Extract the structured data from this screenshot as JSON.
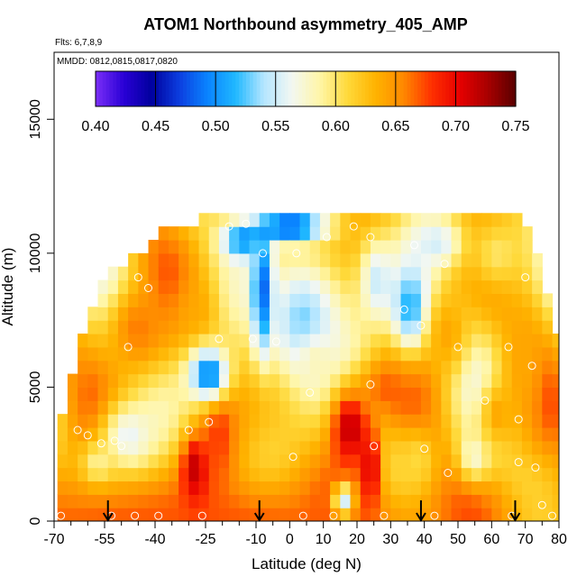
{
  "chart_data": {
    "type": "heatmap",
    "title": "ATOM1 Northbound asymmetry_405_AMP",
    "flights_note": "Flts: 6,7,8,9",
    "dates_note": "MMDD: 0812,0815,0817,0820",
    "xlabel": "Latitude (deg N)",
    "ylabel": "Altitude (m)",
    "xlim": [
      -70,
      80
    ],
    "ylim": [
      0,
      17500
    ],
    "x_ticks": [
      -70,
      -55,
      -40,
      -25,
      -10,
      0,
      10,
      20,
      30,
      40,
      50,
      60,
      70,
      80
    ],
    "x_tick_labels": [
      "-70",
      "-55",
      "-40",
      "-25",
      "-10",
      "0",
      "10",
      "20",
      "30",
      "40",
      "50",
      "60",
      "70",
      "80"
    ],
    "x_minor_ticks": [
      -65,
      -60,
      -50,
      -45,
      -35,
      -30,
      -20,
      -15,
      -5,
      5,
      15,
      25,
      35,
      45,
      55,
      65,
      75
    ],
    "y_ticks": [
      0,
      5000,
      10000,
      15000
    ],
    "y_tick_labels": [
      "0",
      "5000",
      "10000",
      "15000"
    ],
    "colorbar": {
      "min": 0.4,
      "max": 0.75,
      "ticks": [
        0.4,
        0.45,
        0.5,
        0.55,
        0.6,
        0.65,
        0.7,
        0.75
      ],
      "tick_labels": [
        "0.40",
        "0.45",
        "0.50",
        "0.55",
        "0.60",
        "0.65",
        "0.70",
        "0.75"
      ],
      "colors": [
        "#7b2ff7",
        "#2a00d6",
        "#00009e",
        "#0c3fe0",
        "#0a84ff",
        "#20b8ff",
        "#b4e6ff",
        "#f2f7f2",
        "#fff6a8",
        "#ffd93a",
        "#ffb300",
        "#ff8800",
        "#ff3000",
        "#e60000",
        "#a80000",
        "#5a0000"
      ]
    },
    "arrows_latitude": [
      -54,
      -9,
      39,
      67
    ],
    "grid": {
      "lat_start": -69,
      "lat_step": 3,
      "alt_start": 0,
      "alt_step": 500
    },
    "envelope": [
      [
        -69,
        3500
      ],
      [
        -66,
        4500
      ],
      [
        -63,
        5800
      ],
      [
        -60,
        7300
      ],
      [
        -57,
        8400
      ],
      [
        -54,
        9000
      ],
      [
        -51,
        9400
      ],
      [
        -48,
        9400
      ],
      [
        -45,
        9900
      ],
      [
        -42,
        9900
      ],
      [
        -39,
        10400
      ],
      [
        -36,
        10700
      ],
      [
        -33,
        10900
      ],
      [
        -30,
        10900
      ],
      [
        -27,
        11000
      ],
      [
        -24,
        11400
      ],
      [
        -21,
        11400
      ],
      [
        -18,
        11400
      ],
      [
        -15,
        11400
      ],
      [
        -12,
        11400
      ],
      [
        -9,
        11400
      ],
      [
        -6,
        11400
      ],
      [
        -3,
        11400
      ],
      [
        0,
        11400
      ],
      [
        3,
        11400
      ],
      [
        6,
        11400
      ],
      [
        9,
        11400
      ],
      [
        12,
        11400
      ],
      [
        15,
        11400
      ],
      [
        18,
        11400
      ],
      [
        21,
        11400
      ],
      [
        24,
        11400
      ],
      [
        27,
        11400
      ],
      [
        30,
        11400
      ],
      [
        33,
        11400
      ],
      [
        36,
        11400
      ],
      [
        39,
        11400
      ],
      [
        42,
        11400
      ],
      [
        45,
        11400
      ],
      [
        48,
        11400
      ],
      [
        51,
        11400
      ],
      [
        54,
        11400
      ],
      [
        57,
        11400
      ],
      [
        60,
        11400
      ],
      [
        63,
        11400
      ],
      [
        66,
        11400
      ],
      [
        69,
        11400
      ],
      [
        72,
        10600
      ],
      [
        75,
        9000
      ],
      [
        78,
        7200
      ],
      [
        80,
        6800
      ]
    ],
    "features": [
      {
        "lat": -33,
        "alt": 0,
        "dlat": 120,
        "dalt": 2000,
        "val": 0.67
      },
      {
        "lat": -28,
        "alt": 2000,
        "dlat": 4,
        "dalt": 1200,
        "val": 0.72
      },
      {
        "lat": -21,
        "alt": 3500,
        "dlat": 5,
        "dalt": 2200,
        "val": 0.68
      },
      {
        "lat": -48,
        "alt": 3200,
        "dlat": 8,
        "dalt": 1300,
        "val": 0.56
      },
      {
        "lat": -57,
        "alt": 2200,
        "dlat": 5,
        "dalt": 800,
        "val": 0.59
      },
      {
        "lat": -45,
        "alt": 7200,
        "dlat": 9,
        "dalt": 1600,
        "val": 0.66
      },
      {
        "lat": -28,
        "alt": 7800,
        "dlat": 6,
        "dalt": 1300,
        "val": 0.64
      },
      {
        "lat": -24,
        "alt": 5500,
        "dlat": 6,
        "dalt": 1000,
        "val": 0.49
      },
      {
        "lat": -8,
        "alt": 8500,
        "dlat": 3,
        "dalt": 2200,
        "val": 0.46
      },
      {
        "lat": -14,
        "alt": 10500,
        "dlat": 6,
        "dalt": 700,
        "val": 0.5
      },
      {
        "lat": 0,
        "alt": 11000,
        "dlat": 10,
        "dalt": 500,
        "val": 0.45
      },
      {
        "lat": 4,
        "alt": 7500,
        "dlat": 12,
        "dalt": 2500,
        "val": 0.53
      },
      {
        "lat": 8,
        "alt": 6000,
        "dlat": 6,
        "dalt": 900,
        "val": 0.58
      },
      {
        "lat": 18,
        "alt": 3500,
        "dlat": 6,
        "dalt": 1500,
        "val": 0.72
      },
      {
        "lat": 24,
        "alt": 2000,
        "dlat": 3,
        "dalt": 1500,
        "val": 0.71
      },
      {
        "lat": 16,
        "alt": 800,
        "dlat": 3,
        "dalt": 600,
        "val": 0.55
      },
      {
        "lat": 30,
        "alt": 5000,
        "dlat": 9,
        "dalt": 1000,
        "val": 0.67
      },
      {
        "lat": 26,
        "alt": 9000,
        "dlat": 5,
        "dalt": 1500,
        "val": 0.55
      },
      {
        "lat": 36,
        "alt": 8000,
        "dlat": 6,
        "dalt": 1700,
        "val": 0.51
      },
      {
        "lat": 47,
        "alt": 7000,
        "dlat": 6,
        "dalt": 1500,
        "val": 0.64
      },
      {
        "lat": 38,
        "alt": 2300,
        "dlat": 5,
        "dalt": 1000,
        "val": 0.61
      },
      {
        "lat": 55,
        "alt": 2500,
        "dlat": 5,
        "dalt": 1000,
        "val": 0.57
      },
      {
        "lat": 62,
        "alt": 4000,
        "dlat": 6,
        "dalt": 1300,
        "val": 0.64
      },
      {
        "lat": 44,
        "alt": 10400,
        "dlat": 8,
        "dalt": 900,
        "val": 0.55
      },
      {
        "lat": 62,
        "alt": 10000,
        "dlat": 10,
        "dalt": 1500,
        "val": 0.6
      },
      {
        "lat": 70,
        "alt": 6000,
        "dlat": 6,
        "dalt": 2500,
        "val": 0.64
      }
    ],
    "points": [
      [
        -68,
        200
      ],
      [
        -63,
        3400
      ],
      [
        -60,
        3200
      ],
      [
        -56,
        2900
      ],
      [
        -53,
        200
      ],
      [
        -52,
        3000
      ],
      [
        -50,
        2800
      ],
      [
        -48,
        6500
      ],
      [
        -46,
        200
      ],
      [
        -45,
        9100
      ],
      [
        -42,
        8700
      ],
      [
        -39,
        200
      ],
      [
        -30,
        3400
      ],
      [
        -26,
        200
      ],
      [
        -24,
        3700
      ],
      [
        -21,
        6800
      ],
      [
        -18,
        11000
      ],
      [
        -13,
        11100
      ],
      [
        -11,
        6800
      ],
      [
        -8,
        10000
      ],
      [
        -4,
        6700
      ],
      [
        1,
        2400
      ],
      [
        2,
        10000
      ],
      [
        4,
        200
      ],
      [
        6,
        4800
      ],
      [
        11,
        10600
      ],
      [
        13,
        200
      ],
      [
        19,
        11000
      ],
      [
        24,
        10600
      ],
      [
        24,
        5100
      ],
      [
        25,
        2800
      ],
      [
        28,
        200
      ],
      [
        34,
        7900
      ],
      [
        37,
        10300
      ],
      [
        39,
        7300
      ],
      [
        40,
        2700
      ],
      [
        43,
        200
      ],
      [
        46,
        9600
      ],
      [
        47,
        1800
      ],
      [
        50,
        6500
      ],
      [
        58,
        4500
      ],
      [
        65,
        6500
      ],
      [
        66,
        200
      ],
      [
        68,
        2200
      ],
      [
        68,
        3800
      ],
      [
        70,
        9100
      ],
      [
        72,
        5800
      ],
      [
        73,
        2000
      ],
      [
        75,
        600
      ],
      [
        78,
        200
      ]
    ]
  }
}
